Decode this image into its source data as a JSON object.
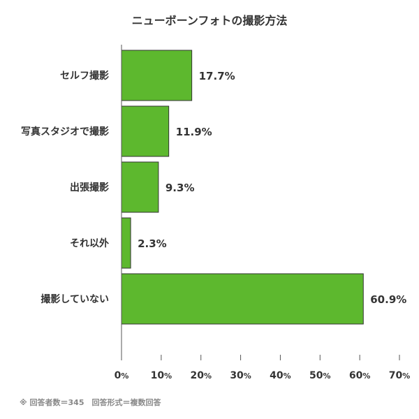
{
  "chart_data": {
    "type": "bar",
    "orientation": "horizontal",
    "title": "ニューボーンフォトの撮影方法",
    "categories": [
      "セルフ撮影",
      "写真スタジオで撮影",
      "出張撮影",
      "それ以外",
      "撮影していない"
    ],
    "values": [
      17.7,
      11.9,
      9.3,
      2.3,
      60.9
    ],
    "value_labels": [
      "17.7%",
      "11.9%",
      "9.3%",
      "2.3%",
      "60.9%"
    ],
    "xlim": [
      0,
      70
    ],
    "xticks": [
      0,
      10,
      20,
      30,
      40,
      50,
      60,
      70
    ],
    "tick_unit": "%",
    "bar_color": "#5db82e",
    "grid": false,
    "xlabel": "",
    "ylabel": ""
  },
  "footnote": "※ 回答者数＝345　回答形式＝複数回答"
}
